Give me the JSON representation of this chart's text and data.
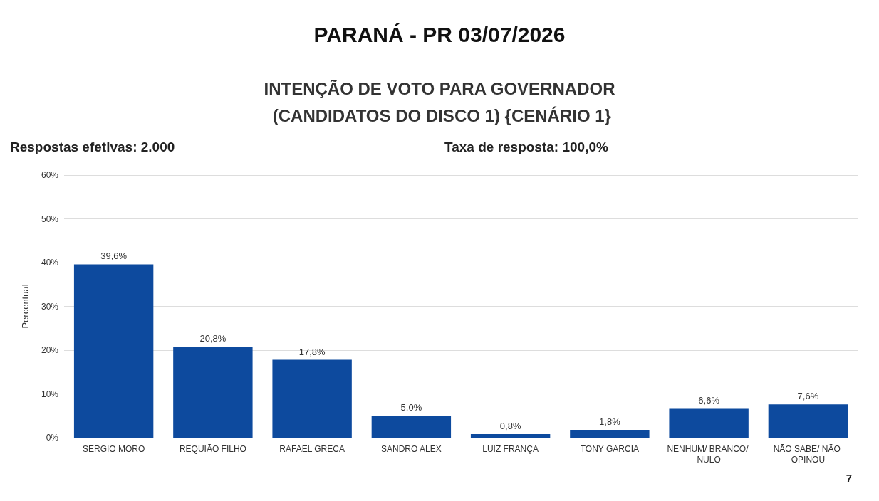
{
  "chart_data": {
    "type": "bar",
    "title": "PARANÁ - PR 03/07/2026",
    "subtitle": "INTENÇÃO DE VOTO PARA GOVERNADOR\n (CANDIDATOS DO DISCO 1) {CENÁRIO 1}",
    "ylabel": "Percentual",
    "categories": [
      "SERGIO MORO",
      "REQUIÃO FILHO",
      "RAFAEL GRECA",
      "SANDRO ALEX",
      "LUIZ FRANÇA",
      "TONY GARCIA",
      "NENHUM/ BRANCO/ NULO",
      "NÃO SABE/ NÃO OPINOU"
    ],
    "values": [
      39.6,
      20.8,
      17.8,
      5.0,
      0.8,
      1.8,
      6.6,
      7.6
    ],
    "value_labels": [
      "39,6%",
      "20,8%",
      "17,8%",
      "5,0%",
      "0,8%",
      "1,8%",
      "6,6%",
      "7,6%"
    ],
    "color": "#0d4a9e",
    "ylim": [
      0,
      60
    ],
    "yticks": [
      {
        "value": 0,
        "label": "0%"
      },
      {
        "value": 10,
        "label": "10%"
      },
      {
        "value": 20,
        "label": "20%"
      },
      {
        "value": 30,
        "label": "30%"
      },
      {
        "value": 40,
        "label": "40%"
      },
      {
        "value": 50,
        "label": "50%"
      },
      {
        "value": 60,
        "label": "60%"
      }
    ],
    "grid": "y",
    "annotations": [
      "Respostas efetivas: 2.000",
      "Taxa de resposta: 100,0%",
      "7"
    ]
  }
}
